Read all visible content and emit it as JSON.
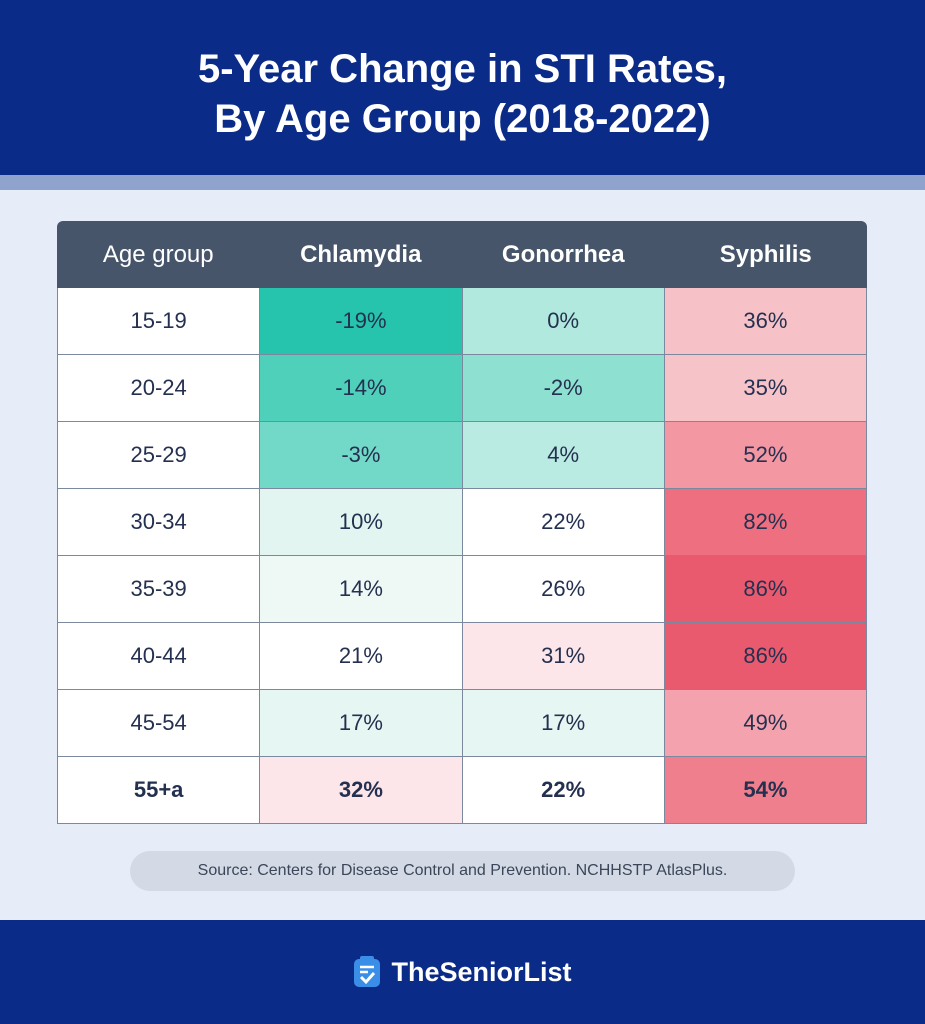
{
  "title_line1": "5-Year Change in STI Rates,",
  "title_line2": "By Age Group (2018-2022)",
  "chart_data": {
    "type": "heatmap",
    "columns": [
      "Age group",
      "Chlamydia",
      "Gonorrhea",
      "Syphilis"
    ],
    "rows": [
      {
        "age": "15-19",
        "values": [
          "-19%",
          "0%",
          "36%"
        ],
        "colors": [
          "#26c4ad",
          "#b1e9df",
          "#f6c1c7"
        ]
      },
      {
        "age": "20-24",
        "values": [
          "-14%",
          "-2%",
          "35%"
        ],
        "colors": [
          "#4fd0bb",
          "#8ee0d1",
          "#f6c3c9"
        ]
      },
      {
        "age": "25-29",
        "values": [
          "-3%",
          "4%",
          "52%"
        ],
        "colors": [
          "#72d9c8",
          "#b9ebe2",
          "#f397a3"
        ]
      },
      {
        "age": "30-34",
        "values": [
          "10%",
          "22%",
          "82%"
        ],
        "colors": [
          "#e2f5f1",
          "#ffffff",
          "#ee6f80"
        ]
      },
      {
        "age": "35-39",
        "values": [
          "14%",
          "26%",
          "86%"
        ],
        "colors": [
          "#eef9f6",
          "#ffffff",
          "#ea5a6f"
        ]
      },
      {
        "age": "40-44",
        "values": [
          "21%",
          "31%",
          "86%"
        ],
        "colors": [
          "#ffffff",
          "#fde6e9",
          "#ea5a6f"
        ]
      },
      {
        "age": "45-54",
        "values": [
          "17%",
          "17%",
          "49%"
        ],
        "colors": [
          "#e6f6f2",
          "#e6f6f2",
          "#f4a2ad"
        ]
      },
      {
        "age": "55+a",
        "values": [
          "32%",
          "22%",
          "54%"
        ],
        "colors": [
          "#fde6e9",
          "#ffffff",
          "#ef7f8d"
        ],
        "bold": true
      }
    ]
  },
  "source": "Source: Centers for Disease Control and Prevention. NCHHSTP AtlasPlus.",
  "brand": "TheSeniorList",
  "colors": {
    "navy": "#0b2b88",
    "header_row": "#46556a",
    "logo_blue": "#3a8ee8"
  }
}
